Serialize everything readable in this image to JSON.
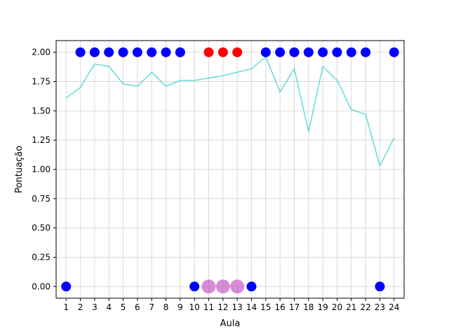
{
  "chart_data": {
    "type": "scatter",
    "title": "",
    "xlabel": "Aula",
    "ylabel": "Pontuação",
    "xlim": [
      0.3,
      24.7
    ],
    "ylim": [
      -0.1,
      2.1
    ],
    "grid": true,
    "x_ticks": [
      1,
      2,
      3,
      4,
      5,
      6,
      7,
      8,
      9,
      10,
      11,
      12,
      13,
      14,
      15,
      16,
      17,
      18,
      19,
      20,
      21,
      22,
      23,
      24
    ],
    "y_ticks": [
      "0.00",
      "0.25",
      "0.50",
      "0.75",
      "1.00",
      "1.25",
      "1.50",
      "1.75",
      "2.00"
    ],
    "line_series": {
      "color": "#40d0d0",
      "x": [
        1,
        2,
        3,
        4,
        5,
        6,
        7,
        8,
        9,
        10,
        11,
        12,
        13,
        14,
        15,
        16,
        17,
        18,
        19,
        20,
        21,
        22,
        23,
        24
      ],
      "y": [
        1.61,
        1.7,
        1.9,
        1.88,
        1.73,
        1.71,
        1.83,
        1.71,
        1.76,
        1.76,
        1.78,
        1.8,
        1.83,
        1.86,
        1.96,
        1.66,
        1.86,
        1.32,
        1.88,
        1.76,
        1.51,
        1.47,
        1.03,
        1.27
      ]
    },
    "series": [
      {
        "color": "#0000ff",
        "x": [
          1,
          2,
          3,
          4,
          5,
          6,
          7,
          8,
          9,
          10,
          14,
          15,
          16,
          17,
          18,
          19,
          20,
          21,
          22,
          23,
          24
        ],
        "y": [
          0,
          2,
          2,
          2,
          2,
          2,
          2,
          2,
          2,
          0,
          0,
          2,
          2,
          2,
          2,
          2,
          2,
          2,
          2,
          0,
          2
        ]
      },
      {
        "color": "#ff0000",
        "x": [
          11,
          12,
          13
        ],
        "y": [
          2,
          2,
          2
        ]
      },
      {
        "color": "#c040c0",
        "x": [
          11,
          12,
          13
        ],
        "y": [
          0,
          0,
          0
        ]
      }
    ]
  }
}
